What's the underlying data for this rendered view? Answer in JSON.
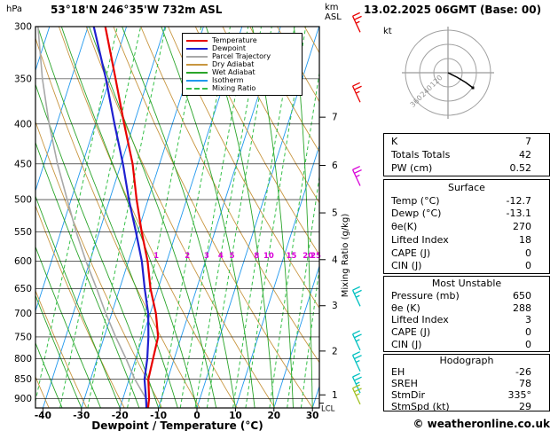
{
  "header": {
    "title": "53°18'N 246°35'W 732m ASL",
    "datetime": "13.02.2025 06GMT (Base: 00)"
  },
  "axes": {
    "pressure_unit": "hPa",
    "altitude_unit_km": "km",
    "altitude_unit_asl": "ASL",
    "x_label": "Dewpoint / Temperature (°C)",
    "mixing_ratio_label": "Mixing Ratio (g/kg)",
    "pressure_ticks": [
      300,
      350,
      400,
      450,
      500,
      550,
      600,
      650,
      700,
      750,
      800,
      850,
      900
    ],
    "temp_ticks": [
      -40,
      -30,
      -20,
      -10,
      0,
      10,
      20,
      30
    ],
    "lcl_label": "LCL"
  },
  "legend": {
    "items": [
      {
        "label": "Temperature",
        "color": "#e80000",
        "dashed": false
      },
      {
        "label": "Dewpoint",
        "color": "#2020d0",
        "dashed": false
      },
      {
        "label": "Parcel Trajectory",
        "color": "#a8a8a8",
        "dashed": false
      },
      {
        "label": "Dry Adiabat",
        "color": "#c89640",
        "dashed": false
      },
      {
        "label": "Wet Adiabat",
        "color": "#2aa52a",
        "dashed": false
      },
      {
        "label": "Isotherm",
        "color": "#2299ee",
        "dashed": false
      },
      {
        "label": "Mixing Ratio",
        "color": "#35c048",
        "dashed": true
      }
    ]
  },
  "hodograph_panel": {
    "unit": "kt",
    "ring_labels": [
      "120",
      "240",
      "360"
    ],
    "trace": [
      [
        0,
        0
      ],
      [
        10,
        5
      ],
      [
        20,
        11
      ],
      [
        28,
        17
      ]
    ]
  },
  "stats": {
    "indices": {
      "rows": [
        {
          "label": "K",
          "value": "7"
        },
        {
          "label": "Totals Totals",
          "value": "42"
        },
        {
          "label": "PW (cm)",
          "value": "0.52"
        }
      ]
    },
    "surface": {
      "title": "Surface",
      "rows": [
        {
          "label": "Temp (°C)",
          "value": "-12.7"
        },
        {
          "label": "Dewp (°C)",
          "value": "-13.1"
        },
        {
          "label": "θe(K)",
          "value": "270"
        },
        {
          "label": "Lifted Index",
          "value": "18"
        },
        {
          "label": "CAPE (J)",
          "value": "0"
        },
        {
          "label": "CIN (J)",
          "value": "0"
        }
      ]
    },
    "most_unstable": {
      "title": "Most Unstable",
      "rows": [
        {
          "label": "Pressure (mb)",
          "value": "650"
        },
        {
          "label": "θe (K)",
          "value": "288"
        },
        {
          "label": "Lifted Index",
          "value": "3"
        },
        {
          "label": "CAPE (J)",
          "value": "0"
        },
        {
          "label": "CIN (J)",
          "value": "0"
        }
      ]
    },
    "hodograph": {
      "title": "Hodograph",
      "rows": [
        {
          "label": "EH",
          "value": "-26"
        },
        {
          "label": "SREH",
          "value": "78"
        },
        {
          "label": "StmDir",
          "value": "335°"
        },
        {
          "label": "StmSpd (kt)",
          "value": "29"
        }
      ]
    }
  },
  "footer": {
    "credit": "© weatheronline.co.uk"
  },
  "chart_data": {
    "type": "line",
    "variant": "skew-t-log-p",
    "title": "53°18'N 246°35'W 732m ASL",
    "xlabel": "Dewpoint / Temperature (°C)",
    "ylabel": "hPa",
    "x_range_c": [
      -40,
      35
    ],
    "pressure_range_hpa": [
      300,
      925
    ],
    "grid": true,
    "legend_position": "top-center",
    "pressure_levels": [
      925,
      900,
      850,
      800,
      750,
      700,
      650,
      600,
      550,
      500,
      450,
      400,
      350,
      300
    ],
    "series": [
      {
        "name": "Temperature",
        "color": "#e80000",
        "values": [
          -12.7,
          -13.2,
          -15,
          -15.5,
          -16,
          -18.5,
          -22,
          -25,
          -29,
          -33,
          -37,
          -42.5,
          -48.5,
          -55.5
        ]
      },
      {
        "name": "Dewpoint",
        "color": "#2020d0",
        "values": [
          -13.1,
          -14,
          -16,
          -17,
          -18.5,
          -20.5,
          -23.5,
          -26.5,
          -30.5,
          -35,
          -39.5,
          -45,
          -51,
          -58.5
        ]
      },
      {
        "name": "Parcel Trajectory",
        "color": "#a8a8a8",
        "values": [
          -12.7,
          -14,
          -18.5,
          -22.5,
          -27,
          -31.5,
          -36,
          -41,
          -46,
          -51,
          -56.5,
          -62,
          -67.5,
          -73
        ]
      }
    ],
    "wind_barbs": [
      {
        "pressure": 305,
        "color": "#e80000"
      },
      {
        "pressure": 375,
        "color": "#e80000"
      },
      {
        "pressure": 480,
        "color": "#d800d8"
      },
      {
        "pressure": 685,
        "color": "#00c0c0"
      },
      {
        "pressure": 780,
        "color": "#00c0c0"
      },
      {
        "pressure": 830,
        "color": "#00c0c0"
      },
      {
        "pressure": 885,
        "color": "#00c0c0"
      },
      {
        "pressure": 915,
        "color": "#a0c020"
      }
    ],
    "mixing_ratio_labels": [
      1,
      2,
      3,
      4,
      5,
      8,
      10,
      15,
      20,
      25
    ],
    "mixing_ratio_label_color": "#d800d8",
    "background": {
      "isotherm_step_c": 10,
      "dry_adiabat_step_k": 10,
      "wet_adiabat_step_c": 5,
      "mixing_ratio_lines": [
        0.1,
        0.2,
        0.4,
        1,
        2,
        3,
        4,
        5,
        8,
        10,
        15,
        20,
        25
      ]
    },
    "km_ticks": [
      {
        "km": 1,
        "pressure": 890
      },
      {
        "km": 2,
        "pressure": 782
      },
      {
        "km": 3,
        "pressure": 684
      },
      {
        "km": 4,
        "pressure": 597
      },
      {
        "km": 5,
        "pressure": 520
      },
      {
        "km": 6,
        "pressure": 452
      },
      {
        "km": 7,
        "pressure": 392
      }
    ],
    "lcl_pressure": 912
  }
}
